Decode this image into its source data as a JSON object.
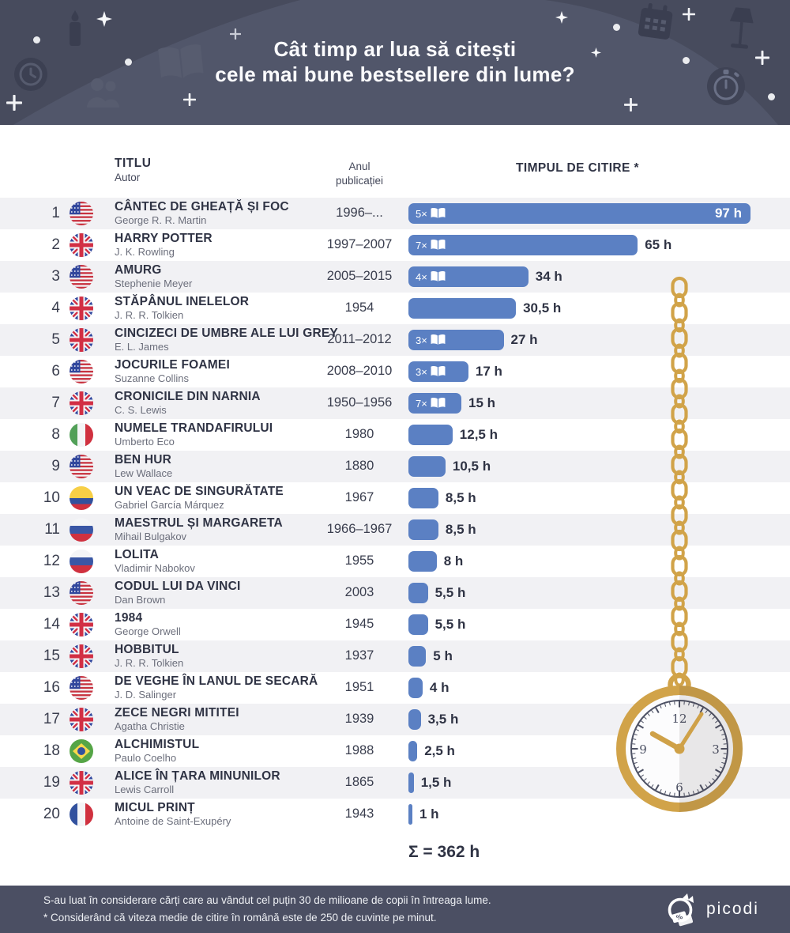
{
  "header": {
    "title_line1": "Cât timp ar lua să citești",
    "title_line2": "cele mai bune bestsellere din lume?"
  },
  "table_headers": {
    "title": "TITLU",
    "author": "Autor",
    "year_line1": "Anul",
    "year_line2": "publicației",
    "time": "TIMPUL DE CITIRE *"
  },
  "chart_data": {
    "type": "bar",
    "title": "Cât timp ar lua să citești cele mai bune bestsellere din lume?",
    "unit": "h",
    "xlim": [
      0,
      97
    ],
    "total_hours": 362,
    "total_label": "Σ = 362 h",
    "items": [
      {
        "rank": 1,
        "flag": "us",
        "title": "CÂNTEC DE GHEAȚĂ ȘI FOC",
        "author": "George R. R. Martin",
        "years": "1996–...",
        "volumes": 5,
        "volumes_label": "5×",
        "hours": 97,
        "hours_label": "97 h",
        "label_inside": true
      },
      {
        "rank": 2,
        "flag": "gb",
        "title": "HARRY POTTER",
        "author": "J. K. Rowling",
        "years": "1997–2007",
        "volumes": 7,
        "volumes_label": "7×",
        "hours": 65,
        "hours_label": "65 h"
      },
      {
        "rank": 3,
        "flag": "us",
        "title": "AMURG",
        "author": "Stephenie Meyer",
        "years": "2005–2015",
        "volumes": 4,
        "volumes_label": "4×",
        "hours": 34,
        "hours_label": "34 h"
      },
      {
        "rank": 4,
        "flag": "gb",
        "title": "STĂPÂNUL INELELOR",
        "author": "J. R. R. Tolkien",
        "years": "1954",
        "volumes": null,
        "hours": 30.5,
        "hours_label": "30,5 h"
      },
      {
        "rank": 5,
        "flag": "gb",
        "title": "CINCIZECI DE UMBRE ALE LUI GREY",
        "author": "E. L. James",
        "years": "2011–2012",
        "volumes": 3,
        "volumes_label": "3×",
        "hours": 27,
        "hours_label": "27 h"
      },
      {
        "rank": 6,
        "flag": "us",
        "title": "JOCURILE FOAMEI",
        "author": "Suzanne Collins",
        "years": "2008–2010",
        "volumes": 3,
        "volumes_label": "3×",
        "hours": 17,
        "hours_label": "17 h"
      },
      {
        "rank": 7,
        "flag": "gb",
        "title": "CRONICILE DIN NARNIA",
        "author": "C. S. Lewis",
        "years": "1950–1956",
        "volumes": 7,
        "volumes_label": "7×",
        "hours": 15,
        "hours_label": "15 h"
      },
      {
        "rank": 8,
        "flag": "it",
        "title": "NUMELE TRANDAFIRULUI",
        "author": "Umberto Eco",
        "years": "1980",
        "volumes": null,
        "hours": 12.5,
        "hours_label": "12,5 h"
      },
      {
        "rank": 9,
        "flag": "us",
        "title": "BEN HUR",
        "author": "Lew Wallace",
        "years": "1880",
        "volumes": null,
        "hours": 10.5,
        "hours_label": "10,5 h"
      },
      {
        "rank": 10,
        "flag": "co",
        "title": "UN VEAC DE SINGURĂTATE",
        "author": "Gabriel García Márquez",
        "years": "1967",
        "volumes": null,
        "hours": 8.5,
        "hours_label": "8,5 h"
      },
      {
        "rank": 11,
        "flag": "ru",
        "title": "MAESTRUL ȘI MARGARETA",
        "author": "Mihail Bulgakov",
        "years": "1966–1967",
        "volumes": null,
        "hours": 8.5,
        "hours_label": "8,5 h"
      },
      {
        "rank": 12,
        "flag": "ru",
        "title": "LOLITA",
        "author": "Vladimir Nabokov",
        "years": "1955",
        "volumes": null,
        "hours": 8,
        "hours_label": "8 h"
      },
      {
        "rank": 13,
        "flag": "us",
        "title": "CODUL LUI DA VINCI",
        "author": "Dan Brown",
        "years": "2003",
        "volumes": null,
        "hours": 5.5,
        "hours_label": "5,5 h"
      },
      {
        "rank": 14,
        "flag": "gb",
        "title": "1984",
        "author": "George Orwell",
        "years": "1945",
        "volumes": null,
        "hours": 5.5,
        "hours_label": "5,5 h"
      },
      {
        "rank": 15,
        "flag": "gb",
        "title": "HOBBITUL",
        "author": "J. R. R. Tolkien",
        "years": "1937",
        "volumes": null,
        "hours": 5,
        "hours_label": "5 h"
      },
      {
        "rank": 16,
        "flag": "us",
        "title": "DE VEGHE ÎN LANUL DE SECARĂ",
        "author": "J. D. Salinger",
        "years": "1951",
        "volumes": null,
        "hours": 4,
        "hours_label": "4 h"
      },
      {
        "rank": 17,
        "flag": "gb",
        "title": "ZECE NEGRI MITITEI",
        "author": "Agatha Christie",
        "years": "1939",
        "volumes": null,
        "hours": 3.5,
        "hours_label": "3,5 h"
      },
      {
        "rank": 18,
        "flag": "br",
        "title": "ALCHIMISTUL",
        "author": "Paulo Coelho",
        "years": "1988",
        "volumes": null,
        "hours": 2.5,
        "hours_label": "2,5 h"
      },
      {
        "rank": 19,
        "flag": "gb",
        "title": "ALICE ÎN ȚARA MINUNILOR",
        "author": "Lewis Carroll",
        "years": "1865",
        "volumes": null,
        "hours": 1.5,
        "hours_label": "1,5 h"
      },
      {
        "rank": 20,
        "flag": "fr",
        "title": "MICUL PRINȚ",
        "author": "Antoine de Saint-Exupéry",
        "years": "1943",
        "volumes": null,
        "hours": 1,
        "hours_label": "1 h"
      }
    ]
  },
  "watch": {
    "numbers": [
      "12",
      "3",
      "6",
      "9"
    ]
  },
  "footer": {
    "line1": "S-au luat în considerare cărți care au vândut cel puțin 30 de milioane de copii în întreaga lume.",
    "line2": "* Considerând că viteza medie de citire în română este de 250 de cuvinte pe minut.",
    "brand": "picodi"
  },
  "colors": {
    "bar_blue": "#5b80c3",
    "navy": "#4b4f63",
    "gold": "#d1a349",
    "row_stripe": "#f1f1f4"
  }
}
